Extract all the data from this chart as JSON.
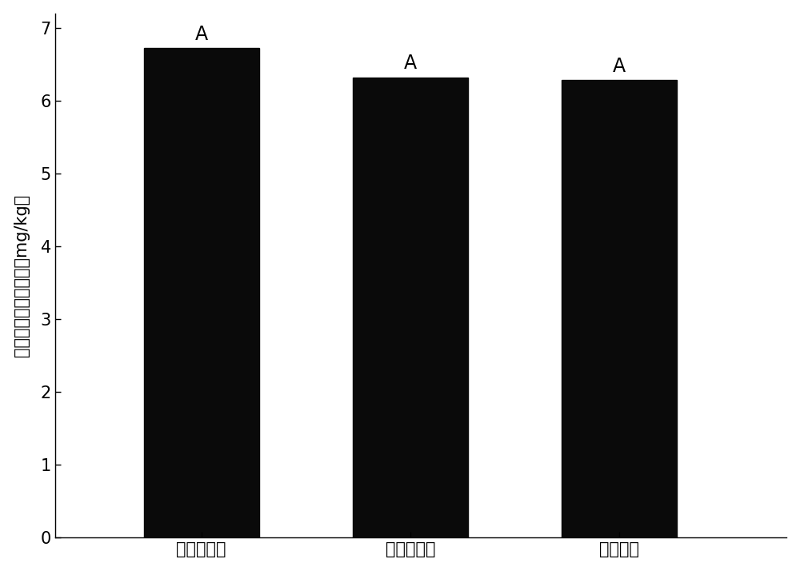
{
  "categories": [
    "金色莫妈卡",
    "欢乐火炮笹",
    "出水芙蓉"
  ],
  "values": [
    6.72,
    6.32,
    6.28
  ],
  "bar_labels": [
    "A",
    "A",
    "A"
  ],
  "bar_color": "#0a0a0a",
  "bar_width": 0.55,
  "bar_positions": [
    1,
    2,
    3
  ],
  "ylabel": "向日葵地上部镄含量（mg/kg）",
  "ylim": [
    0,
    7.2
  ],
  "yticks": [
    0,
    1,
    2,
    3,
    4,
    5,
    6,
    7
  ],
  "tick_fontsize": 15,
  "ylabel_fontsize": 15,
  "label_fontsize": 17,
  "background_color": "#ffffff",
  "axes_background": "#ffffff",
  "xlim": [
    0.3,
    3.8
  ]
}
